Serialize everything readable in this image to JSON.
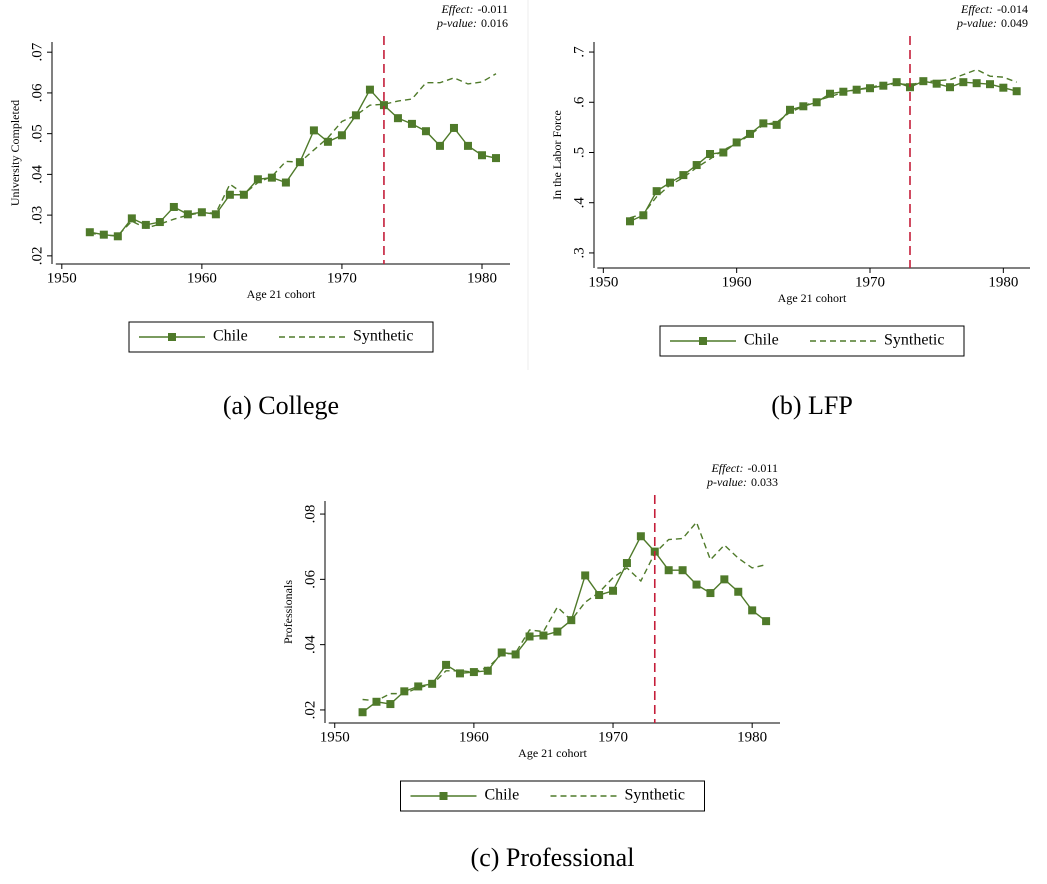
{
  "chart_data": [
    {
      "type": "line",
      "caption": "(a) College",
      "xlabel": "Age 21 cohort",
      "ylabel": "University Completed",
      "effect_label": "Effect:",
      "effect": "-0.011",
      "pvalue_label": "p-value:",
      "pvalue": "0.016",
      "treatment_year": 1973,
      "treatment_color": "#c41e3a",
      "x": [
        1952,
        1953,
        1954,
        1955,
        1956,
        1957,
        1958,
        1959,
        1960,
        1961,
        1962,
        1963,
        1964,
        1965,
        1966,
        1967,
        1968,
        1969,
        1970,
        1971,
        1972,
        1973,
        1974,
        1975,
        1976,
        1977,
        1978,
        1979,
        1980,
        1981
      ],
      "series": [
        {
          "name": "Chile",
          "color": "#4f7a2a",
          "marker": "square",
          "values": [
            0.0258,
            0.0252,
            0.0248,
            0.0292,
            0.0276,
            0.0283,
            0.032,
            0.0302,
            0.0307,
            0.0302,
            0.035,
            0.035,
            0.0388,
            0.0392,
            0.038,
            0.043,
            0.0508,
            0.048,
            0.0496,
            0.0545,
            0.0608,
            0.057,
            0.0538,
            0.0524,
            0.0506,
            0.047,
            0.0514,
            0.047,
            0.0447,
            0.044
          ]
        },
        {
          "name": "Synthetic",
          "color": "#4f7a2a",
          "dashed": true,
          "values": [
            0.0256,
            0.025,
            0.025,
            0.0285,
            0.0268,
            0.0278,
            0.029,
            0.03,
            0.0306,
            0.0305,
            0.0376,
            0.0352,
            0.038,
            0.0395,
            0.0432,
            0.043,
            0.046,
            0.049,
            0.053,
            0.0545,
            0.057,
            0.0572,
            0.058,
            0.0585,
            0.0625,
            0.0625,
            0.0637,
            0.0622,
            0.0627,
            0.0647
          ]
        }
      ],
      "xlim": [
        1949.3,
        1982
      ],
      "xticks": [
        1950,
        1960,
        1970,
        1980
      ],
      "ylim": [
        0.018,
        0.0725
      ],
      "yticks": [
        {
          "value": 0.02,
          "label": ".02"
        },
        {
          "value": 0.03,
          "label": ".03"
        },
        {
          "value": 0.04,
          "label": ".04"
        },
        {
          "value": 0.05,
          "label": ".05"
        },
        {
          "value": 0.06,
          "label": ".06"
        },
        {
          "value": 0.07,
          "label": ".07"
        }
      ],
      "grid": false
    },
    {
      "type": "line",
      "caption": "(b) LFP",
      "xlabel": "Age 21 cohort",
      "ylabel": "In the Labor Force",
      "effect_label": "Effect:",
      "effect": "-0.014",
      "pvalue_label": "p-value:",
      "pvalue": "0.049",
      "treatment_year": 1973,
      "treatment_color": "#c41e3a",
      "x": [
        1952,
        1953,
        1954,
        1955,
        1956,
        1957,
        1958,
        1959,
        1960,
        1961,
        1962,
        1963,
        1964,
        1965,
        1966,
        1967,
        1968,
        1969,
        1970,
        1971,
        1972,
        1973,
        1974,
        1975,
        1976,
        1977,
        1978,
        1979,
        1980,
        1981
      ],
      "series": [
        {
          "name": "Chile",
          "color": "#4f7a2a",
          "marker": "square",
          "values": [
            0.363,
            0.375,
            0.423,
            0.44,
            0.455,
            0.475,
            0.497,
            0.5,
            0.52,
            0.537,
            0.558,
            0.555,
            0.585,
            0.592,
            0.6,
            0.617,
            0.621,
            0.625,
            0.628,
            0.633,
            0.64,
            0.63,
            0.642,
            0.637,
            0.63,
            0.64,
            0.638,
            0.636,
            0.629,
            0.622
          ]
        },
        {
          "name": "Synthetic",
          "color": "#4f7a2a",
          "dashed": true,
          "values": [
            0.37,
            0.378,
            0.412,
            0.435,
            0.45,
            0.47,
            0.487,
            0.505,
            0.518,
            0.535,
            0.555,
            0.56,
            0.58,
            0.592,
            0.603,
            0.611,
            0.62,
            0.625,
            0.63,
            0.635,
            0.637,
            0.635,
            0.64,
            0.643,
            0.645,
            0.655,
            0.665,
            0.652,
            0.65,
            0.64
          ]
        }
      ],
      "xlim": [
        1949.3,
        1982
      ],
      "xticks": [
        1950,
        1960,
        1970,
        1980
      ],
      "ylim": [
        0.27,
        0.72
      ],
      "yticks": [
        {
          "value": 0.3,
          "label": ".3"
        },
        {
          "value": 0.4,
          "label": ".4"
        },
        {
          "value": 0.5,
          "label": ".5"
        },
        {
          "value": 0.6,
          "label": ".6"
        },
        {
          "value": 0.7,
          "label": ".7"
        }
      ],
      "grid": false
    },
    {
      "type": "line",
      "caption": "(c) Professional",
      "xlabel": "Age 21 cohort",
      "ylabel": "Professionals",
      "effect_label": "Effect:",
      "effect": "-0.011",
      "pvalue_label": "p-value:",
      "pvalue": "0.033",
      "treatment_year": 1973,
      "treatment_color": "#c41e3a",
      "x": [
        1952,
        1953,
        1954,
        1955,
        1956,
        1957,
        1958,
        1959,
        1960,
        1961,
        1962,
        1963,
        1964,
        1965,
        1966,
        1967,
        1968,
        1969,
        1970,
        1971,
        1972,
        1973,
        1974,
        1975,
        1976,
        1977,
        1978,
        1979,
        1980,
        1981
      ],
      "series": [
        {
          "name": "Chile",
          "color": "#4f7a2a",
          "marker": "square",
          "values": [
            0.0193,
            0.0225,
            0.0218,
            0.0257,
            0.0272,
            0.028,
            0.0338,
            0.0312,
            0.0316,
            0.032,
            0.0376,
            0.037,
            0.0425,
            0.0428,
            0.044,
            0.0475,
            0.0612,
            0.0552,
            0.0565,
            0.065,
            0.0732,
            0.0685,
            0.0628,
            0.0628,
            0.0584,
            0.0558,
            0.06,
            0.0562,
            0.0505,
            0.0472
          ]
        },
        {
          "name": "Synthetic",
          "color": "#4f7a2a",
          "dashed": true,
          "values": [
            0.0232,
            0.0228,
            0.025,
            0.025,
            0.0268,
            0.0278,
            0.032,
            0.032,
            0.0316,
            0.033,
            0.037,
            0.0375,
            0.0445,
            0.044,
            0.0515,
            0.0475,
            0.053,
            0.056,
            0.0605,
            0.0635,
            0.0595,
            0.068,
            0.0722,
            0.0725,
            0.0775,
            0.066,
            0.0705,
            0.0665,
            0.0635,
            0.0645
          ]
        }
      ],
      "xlim": [
        1949.3,
        1982
      ],
      "xticks": [
        1950,
        1960,
        1970,
        1980
      ],
      "ylim": [
        0.016,
        0.084
      ],
      "yticks": [
        {
          "value": 0.02,
          "label": ".02"
        },
        {
          "value": 0.04,
          "label": ".04"
        },
        {
          "value": 0.06,
          "label": ".06"
        },
        {
          "value": 0.08,
          "label": ".08"
        }
      ],
      "grid": false
    }
  ]
}
